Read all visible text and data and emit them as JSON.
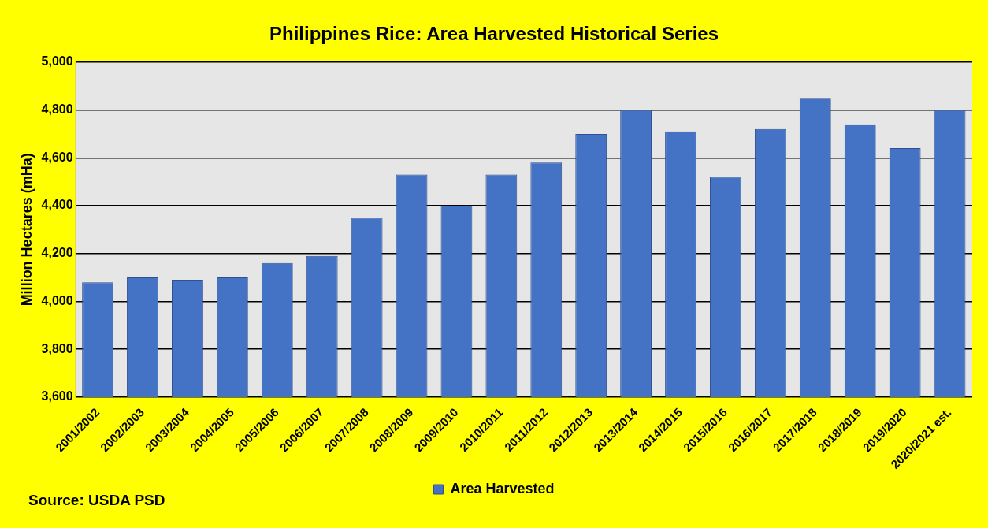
{
  "chart_data": {
    "type": "bar",
    "title": "Philippines Rice: Area Harvested Historical Series",
    "ylabel": "Million Hectares (mHa)",
    "categories": [
      "2001/2002",
      "2002/2003",
      "2003/2004",
      "2004/2005",
      "2005/2006",
      "2006/2007",
      "2007/2008",
      "2008/2009",
      "2009/2010",
      "2010/2011",
      "2011/2012",
      "2012/2013",
      "2013/2014",
      "2014/2015",
      "2015/2016",
      "2016/2017",
      "2017/2018",
      "2018/2019",
      "2019/2020",
      "2020/2021 est."
    ],
    "series": [
      {
        "name": "Area Harvested",
        "color": "#4472c4",
        "values": [
          4080,
          4100,
          4090,
          4100,
          4160,
          4190,
          4350,
          4530,
          4400,
          4530,
          4580,
          4700,
          4800,
          4710,
          4520,
          4720,
          4850,
          4740,
          4640,
          4800
        ]
      }
    ],
    "ylim": [
      3600,
      5000
    ],
    "yticks": [
      {
        "value": 3600,
        "label": "3,600"
      },
      {
        "value": 3800,
        "label": "3,800"
      },
      {
        "value": 4000,
        "label": "4,000"
      },
      {
        "value": 4200,
        "label": "4,200"
      },
      {
        "value": 4400,
        "label": "4,400"
      },
      {
        "value": 4600,
        "label": "4,600"
      },
      {
        "value": 4800,
        "label": "4,800"
      },
      {
        "value": 5000,
        "label": "5,000"
      }
    ],
    "grid": "y",
    "legend": "bottom",
    "annotations": [
      "Source: USDA PSD"
    ]
  }
}
